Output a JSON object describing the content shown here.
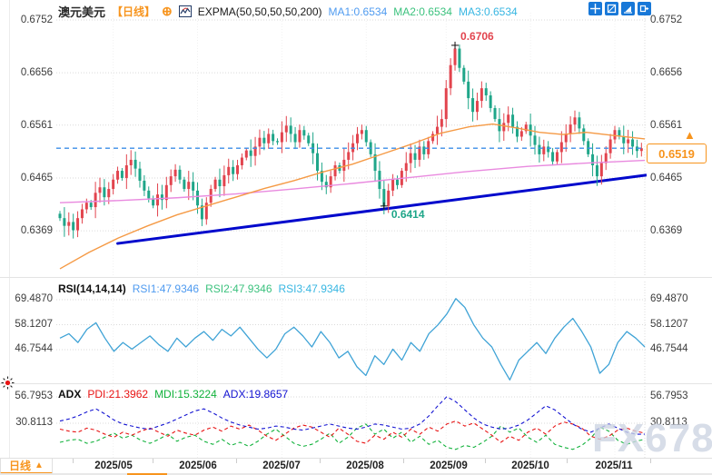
{
  "header": {
    "symbol": "澳元美元",
    "period": "【日线】",
    "add_button": "⊕",
    "indicator_label": "EXPMA(50,50,50,50,200)",
    "ma1": "MA1:0.6534",
    "ma2": "MA2:0.6534",
    "ma3": "MA3:0.6534"
  },
  "main_axis_labels": [
    "0.6752",
    "0.6656",
    "0.6561",
    "0.6465",
    "0.6369"
  ],
  "price_badge": {
    "value": "0.6519",
    "arrow": "▲"
  },
  "annotations": {
    "high": "0.6706",
    "low": "0.6414"
  },
  "rsi_panel": {
    "title": "RSI(14,14,14)",
    "rsi1": "RSI1:47.9346",
    "rsi2": "RSI2:47.9346",
    "rsi3": "RSI3:47.9346",
    "axis_labels": [
      "69.4870",
      "58.1207",
      "46.7544"
    ]
  },
  "adx_panel": {
    "title": "ADX",
    "pdi": "PDI:21.3962",
    "mdi": "MDI:15.3224",
    "adx": "ADX:19.8657",
    "axis_labels": [
      "56.7953",
      "30.8113"
    ]
  },
  "x_axis_labels": [
    "2025/05",
    "2025/06",
    "2025/07",
    "2025/08",
    "2025/09",
    "2025/10",
    "2025/11"
  ],
  "bottom_tab": {
    "label": "日线",
    "arrow": "▲"
  },
  "watermark": "FX678",
  "colors": {
    "up": "#e2444e",
    "down": "#1fa689",
    "ma_fast": "#f59a45",
    "ma_slow": "#e98adf",
    "trendline": "#0008cc",
    "current_line": "#3b8de8",
    "accent_orange": "#f7941d",
    "rsi_line": "#3fa3d6",
    "adx_line": "#1414d2",
    "pdi_line": "#e81414",
    "mdi_line": "#12b23c"
  },
  "chart_data": {
    "type": "candlestick",
    "title": "澳元美元 日线 (AUD/USD daily)",
    "x_months": [
      "2025/05",
      "2025/06",
      "2025/07",
      "2025/08",
      "2025/09",
      "2025/10",
      "2025/11"
    ],
    "month_start_indices": [
      12,
      31,
      50,
      69,
      87,
      106,
      125
    ],
    "y_ticks": [
      0.6752,
      0.6656,
      0.6561,
      0.6465,
      0.6369
    ],
    "first_open": 0.64,
    "closes": [
      0.6392,
      0.6378,
      0.6385,
      0.637,
      0.6392,
      0.6408,
      0.642,
      0.6412,
      0.6438,
      0.6448,
      0.643,
      0.6445,
      0.6462,
      0.6478,
      0.6465,
      0.6488,
      0.6498,
      0.6482,
      0.646,
      0.6442,
      0.6428,
      0.6415,
      0.6435,
      0.6425,
      0.6452,
      0.6468,
      0.648,
      0.6462,
      0.6445,
      0.6458,
      0.6442,
      0.6415,
      0.639,
      0.642,
      0.6445,
      0.6462,
      0.645,
      0.647,
      0.6485,
      0.6472,
      0.6488,
      0.6502,
      0.6515,
      0.6505,
      0.6522,
      0.6538,
      0.6528,
      0.6545,
      0.6532,
      0.653,
      0.6548,
      0.656,
      0.6545,
      0.653,
      0.6552,
      0.6542,
      0.6528,
      0.651,
      0.6478,
      0.6458,
      0.6448,
      0.6468,
      0.6488,
      0.6478,
      0.6498,
      0.6512,
      0.6528,
      0.6545,
      0.6552,
      0.653,
      0.6508,
      0.6478,
      0.6445,
      0.6414,
      0.6442,
      0.6462,
      0.6452,
      0.6478,
      0.6492,
      0.651,
      0.6498,
      0.6522,
      0.6508,
      0.6532,
      0.6545,
      0.6558,
      0.6572,
      0.6628,
      0.667,
      0.67,
      0.6665,
      0.664,
      0.661,
      0.6585,
      0.6605,
      0.6628,
      0.6615,
      0.6592,
      0.6572,
      0.655,
      0.6565,
      0.658,
      0.6558,
      0.654,
      0.655,
      0.6562,
      0.6542,
      0.6525,
      0.6508,
      0.6522,
      0.6512,
      0.6495,
      0.6512,
      0.653,
      0.6545,
      0.6562,
      0.6575,
      0.6555,
      0.6532,
      0.6508,
      0.6488,
      0.6468,
      0.6492,
      0.651,
      0.6535,
      0.6552,
      0.654,
      0.6528,
      0.6535,
      0.6522,
      0.6514,
      0.6519
    ],
    "current_price": 0.6519,
    "high_annotation": {
      "price": 0.6706,
      "index": 89
    },
    "low_annotation": {
      "price": 0.6414,
      "index": 73
    },
    "trendline": {
      "from": {
        "index": 13,
        "price": 0.6346
      },
      "to": {
        "index": 132,
        "price": 0.647
      }
    },
    "ma_fast_points": [
      [
        0,
        0.63
      ],
      [
        0.05,
        0.633
      ],
      [
        0.1,
        0.6356
      ],
      [
        0.15,
        0.6378
      ],
      [
        0.2,
        0.6398
      ],
      [
        0.25,
        0.6414
      ],
      [
        0.3,
        0.643
      ],
      [
        0.35,
        0.6446
      ],
      [
        0.4,
        0.646
      ],
      [
        0.45,
        0.6476
      ],
      [
        0.5,
        0.649
      ],
      [
        0.55,
        0.6508
      ],
      [
        0.6,
        0.6526
      ],
      [
        0.65,
        0.6546
      ],
      [
        0.7,
        0.6558
      ],
      [
        0.74,
        0.6563
      ],
      [
        0.78,
        0.6556
      ],
      [
        0.82,
        0.6548
      ],
      [
        0.86,
        0.6544
      ],
      [
        0.9,
        0.6548
      ],
      [
        0.94,
        0.6543
      ],
      [
        1,
        0.6536
      ]
    ],
    "ma_slow_points": [
      [
        0,
        0.642
      ],
      [
        0.1,
        0.6424
      ],
      [
        0.2,
        0.6429
      ],
      [
        0.3,
        0.6436
      ],
      [
        0.4,
        0.6445
      ],
      [
        0.5,
        0.6455
      ],
      [
        0.6,
        0.6466
      ],
      [
        0.7,
        0.6477
      ],
      [
        0.8,
        0.6486
      ],
      [
        0.9,
        0.6492
      ],
      [
        1,
        0.6497
      ]
    ],
    "rsi": {
      "ticks": [
        69.487,
        58.1207,
        46.7544
      ],
      "current": [
        47.9346,
        47.9346,
        47.9346
      ],
      "values": [
        52,
        54,
        50,
        56,
        59,
        52,
        46,
        50,
        47,
        50,
        53,
        49,
        46,
        52,
        48,
        52,
        55,
        51,
        56,
        53,
        57,
        52,
        47,
        43,
        47,
        54,
        57,
        53,
        48,
        55,
        50,
        43,
        46,
        39,
        35,
        44,
        40,
        47,
        42,
        50,
        46,
        54,
        58,
        63,
        70,
        66,
        58,
        52,
        48,
        40,
        33,
        42,
        46,
        50,
        45,
        52,
        57,
        61,
        55,
        48,
        36,
        40,
        50,
        55,
        52,
        48
      ]
    },
    "adx": {
      "ticks": [
        56.7953,
        30.8113
      ],
      "current": {
        "pdi": 21.3962,
        "mdi": 15.3224,
        "adx": 19.8657
      },
      "adx_values": [
        33,
        35,
        38,
        42,
        45,
        40,
        34,
        30,
        28,
        26,
        25,
        28,
        31,
        35,
        39,
        43,
        45,
        41,
        36,
        32,
        29,
        27,
        25,
        26,
        28,
        27,
        25,
        24,
        26,
        28,
        30,
        28,
        26,
        25,
        27,
        30,
        29,
        27,
        25,
        26,
        30,
        38,
        48,
        57,
        52,
        44,
        36,
        30,
        27,
        25,
        26,
        29,
        34,
        41,
        48,
        44,
        37,
        30,
        25,
        22,
        26,
        30,
        26,
        22,
        20,
        20
      ],
      "pdi_values": [
        25,
        23,
        22,
        26,
        24,
        20,
        17,
        22,
        19,
        23,
        26,
        22,
        18,
        24,
        21,
        19,
        24,
        27,
        23,
        28,
        25,
        29,
        24,
        18,
        14,
        20,
        26,
        29,
        27,
        22,
        17,
        26,
        20,
        13,
        11,
        19,
        15,
        22,
        17,
        25,
        20,
        27,
        23,
        30,
        33,
        28,
        31,
        25,
        19,
        12,
        18,
        14,
        22,
        26,
        20,
        28,
        32,
        30,
        26,
        18,
        15,
        18,
        24,
        26,
        23,
        21
      ],
      "mdi_values": [
        12,
        14,
        15,
        11,
        13,
        17,
        21,
        16,
        19,
        14,
        11,
        15,
        20,
        13,
        17,
        19,
        13,
        10,
        15,
        9,
        12,
        8,
        13,
        20,
        25,
        18,
        11,
        8,
        10,
        15,
        21,
        11,
        17,
        26,
        30,
        20,
        25,
        16,
        22,
        12,
        18,
        10,
        14,
        7,
        5,
        9,
        7,
        12,
        18,
        28,
        22,
        26,
        17,
        12,
        19,
        10,
        7,
        5,
        9,
        16,
        27,
        23,
        14,
        10,
        13,
        15
      ]
    }
  }
}
